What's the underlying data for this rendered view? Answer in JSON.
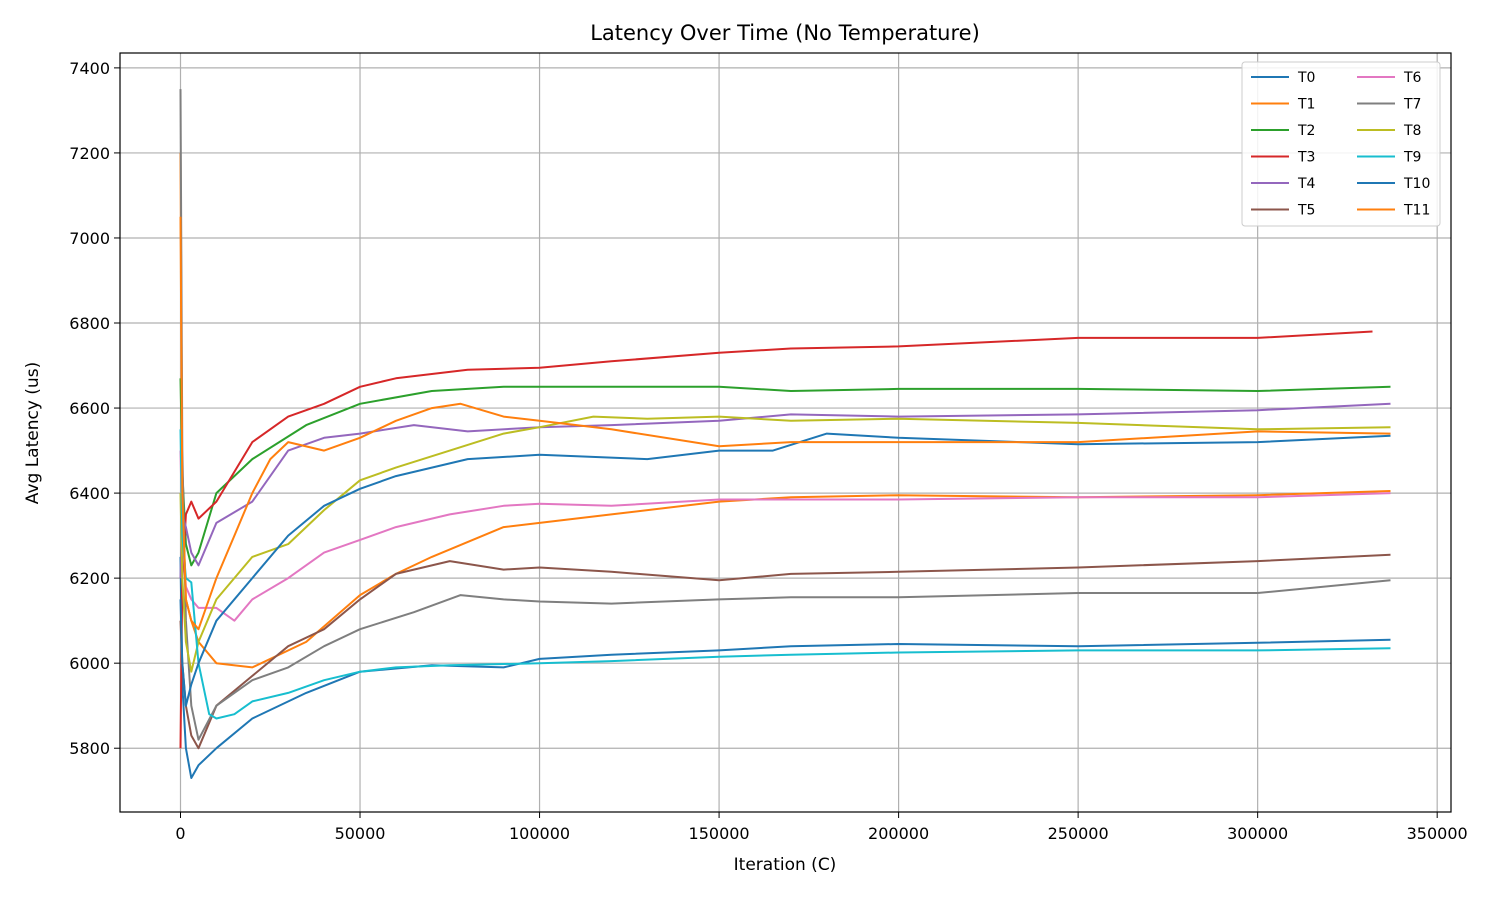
{
  "chart_data": {
    "type": "line",
    "title": "Latency Over Time (No Temperature)",
    "xlabel": "Iteration (C)",
    "ylabel": "Avg Latency (us)",
    "xlim": [
      -16850,
      353850
    ],
    "ylim": [
      5650,
      7435
    ],
    "xticks": [
      0,
      50000,
      100000,
      150000,
      200000,
      250000,
      300000,
      350000
    ],
    "xtick_labels": [
      "0",
      "50000",
      "100000",
      "150000",
      "200000",
      "250000",
      "300000",
      "350000"
    ],
    "yticks": [
      5800,
      6000,
      6200,
      6400,
      6600,
      6800,
      7000,
      7200,
      7400
    ],
    "ytick_labels": [
      "5800",
      "6000",
      "6200",
      "6400",
      "6600",
      "6800",
      "7000",
      "7200",
      "7400"
    ],
    "grid": true,
    "legend": {
      "position": "top-right",
      "columns": 2
    },
    "series": [
      {
        "name": "T0",
        "color": "#1f77b4",
        "x": [
          0,
          500,
          1500,
          3000,
          5000,
          10000,
          20000,
          35000,
          50000,
          70000,
          90000,
          100000,
          120000,
          150000,
          170000,
          200000,
          250000,
          300000,
          337000
        ],
        "y": [
          6250,
          5950,
          5800,
          5730,
          5760,
          5800,
          5870,
          5930,
          5980,
          5995,
          5990,
          6010,
          6020,
          6030,
          6040,
          6045,
          6040,
          6048,
          6055
        ]
      },
      {
        "name": "T1",
        "color": "#ff7f0e",
        "x": [
          0,
          500,
          1500,
          3000,
          5000,
          10000,
          20000,
          35000,
          50000,
          60000,
          70000,
          90000,
          100000,
          120000,
          150000,
          170000,
          200000,
          250000,
          300000,
          337000
        ],
        "y": [
          7200,
          6400,
          6150,
          6100,
          6050,
          6000,
          5990,
          6050,
          6160,
          6210,
          6250,
          6320,
          6330,
          6350,
          6380,
          6390,
          6395,
          6390,
          6395,
          6405
        ]
      },
      {
        "name": "T2",
        "color": "#2ca02c",
        "x": [
          0,
          500,
          1500,
          3000,
          5000,
          10000,
          20000,
          35000,
          50000,
          70000,
          90000,
          100000,
          120000,
          150000,
          170000,
          200000,
          250000,
          300000,
          337000
        ],
        "y": [
          6670,
          6450,
          6280,
          6230,
          6260,
          6400,
          6480,
          6560,
          6610,
          6640,
          6650,
          6650,
          6650,
          6650,
          6640,
          6645,
          6645,
          6640,
          6650
        ]
      },
      {
        "name": "T3",
        "color": "#d62728",
        "x": [
          0,
          500,
          1500,
          3000,
          5000,
          10000,
          20000,
          30000,
          40000,
          50000,
          60000,
          80000,
          100000,
          120000,
          150000,
          170000,
          200000,
          250000,
          300000,
          332000
        ],
        "y": [
          5800,
          6200,
          6350,
          6380,
          6340,
          6380,
          6520,
          6580,
          6610,
          6650,
          6670,
          6690,
          6695,
          6710,
          6730,
          6740,
          6745,
          6765,
          6765,
          6780
        ]
      },
      {
        "name": "T4",
        "color": "#9467bd",
        "x": [
          0,
          500,
          1500,
          3000,
          5000,
          10000,
          20000,
          30000,
          40000,
          50000,
          65000,
          80000,
          100000,
          120000,
          150000,
          170000,
          200000,
          250000,
          300000,
          337000
        ],
        "y": [
          6200,
          6350,
          6320,
          6260,
          6230,
          6330,
          6380,
          6500,
          6530,
          6540,
          6560,
          6545,
          6555,
          6560,
          6570,
          6585,
          6580,
          6585,
          6595,
          6610
        ]
      },
      {
        "name": "T5",
        "color": "#8c564b",
        "x": [
          0,
          500,
          1500,
          3000,
          5000,
          10000,
          20000,
          30000,
          40000,
          50000,
          60000,
          75000,
          90000,
          100000,
          120000,
          150000,
          170000,
          200000,
          250000,
          300000,
          337000
        ],
        "y": [
          6100,
          6000,
          5900,
          5830,
          5800,
          5900,
          5970,
          6040,
          6080,
          6150,
          6210,
          6240,
          6220,
          6225,
          6215,
          6195,
          6210,
          6215,
          6225,
          6240,
          6255
        ]
      },
      {
        "name": "T6",
        "color": "#e377c2",
        "x": [
          0,
          500,
          1500,
          3000,
          5000,
          10000,
          15000,
          20000,
          30000,
          40000,
          50000,
          60000,
          75000,
          90000,
          100000,
          120000,
          150000,
          170000,
          200000,
          250000,
          300000,
          337000
        ],
        "y": [
          6500,
          6300,
          6180,
          6150,
          6130,
          6130,
          6100,
          6150,
          6200,
          6260,
          6290,
          6320,
          6350,
          6370,
          6375,
          6370,
          6385,
          6385,
          6385,
          6390,
          6390,
          6400
        ]
      },
      {
        "name": "T7",
        "color": "#7f7f7f",
        "x": [
          0,
          500,
          1500,
          3000,
          5000,
          10000,
          20000,
          30000,
          40000,
          50000,
          65000,
          78000,
          90000,
          100000,
          120000,
          150000,
          170000,
          200000,
          250000,
          300000,
          337000
        ],
        "y": [
          7350,
          6500,
          6100,
          5900,
          5820,
          5900,
          5960,
          5990,
          6040,
          6080,
          6120,
          6160,
          6150,
          6145,
          6140,
          6150,
          6155,
          6155,
          6165,
          6165,
          6195
        ]
      },
      {
        "name": "T8",
        "color": "#bcbd22",
        "x": [
          0,
          500,
          1500,
          3000,
          5000,
          10000,
          20000,
          30000,
          40000,
          50000,
          60000,
          75000,
          90000,
          100000,
          115000,
          130000,
          150000,
          170000,
          200000,
          250000,
          300000,
          337000
        ],
        "y": [
          6400,
          6200,
          6050,
          5980,
          6050,
          6150,
          6250,
          6280,
          6360,
          6430,
          6460,
          6500,
          6540,
          6555,
          6580,
          6575,
          6580,
          6570,
          6575,
          6565,
          6550,
          6555
        ]
      },
      {
        "name": "T9",
        "color": "#17becf",
        "x": [
          0,
          500,
          1500,
          3000,
          5000,
          8000,
          10000,
          15000,
          20000,
          30000,
          40000,
          50000,
          60000,
          75000,
          100000,
          120000,
          150000,
          170000,
          200000,
          250000,
          300000,
          337000
        ],
        "y": [
          6550,
          6300,
          6200,
          6190,
          6000,
          5880,
          5870,
          5880,
          5910,
          5930,
          5960,
          5980,
          5990,
          5995,
          6000,
          6005,
          6015,
          6020,
          6025,
          6030,
          6030,
          6035
        ]
      },
      {
        "name": "T10",
        "color": "#1f77b4",
        "x": [
          0,
          500,
          1500,
          3000,
          5000,
          10000,
          20000,
          30000,
          40000,
          50000,
          60000,
          80000,
          100000,
          130000,
          150000,
          165000,
          180000,
          200000,
          250000,
          300000,
          337000
        ],
        "y": [
          6150,
          6000,
          5900,
          5950,
          6000,
          6100,
          6200,
          6300,
          6370,
          6410,
          6440,
          6480,
          6490,
          6480,
          6500,
          6500,
          6540,
          6530,
          6515,
          6520,
          6535
        ]
      },
      {
        "name": "T11",
        "color": "#ff7f0e",
        "x": [
          0,
          500,
          1500,
          3000,
          5000,
          10000,
          15000,
          20000,
          25000,
          30000,
          40000,
          50000,
          60000,
          70000,
          78000,
          90000,
          100000,
          120000,
          150000,
          170000,
          200000,
          250000,
          300000,
          337000
        ],
        "y": [
          7050,
          6400,
          6150,
          6100,
          6080,
          6200,
          6300,
          6400,
          6480,
          6520,
          6500,
          6530,
          6570,
          6600,
          6610,
          6580,
          6570,
          6550,
          6510,
          6520,
          6520,
          6520,
          6545,
          6540
        ]
      }
    ]
  }
}
